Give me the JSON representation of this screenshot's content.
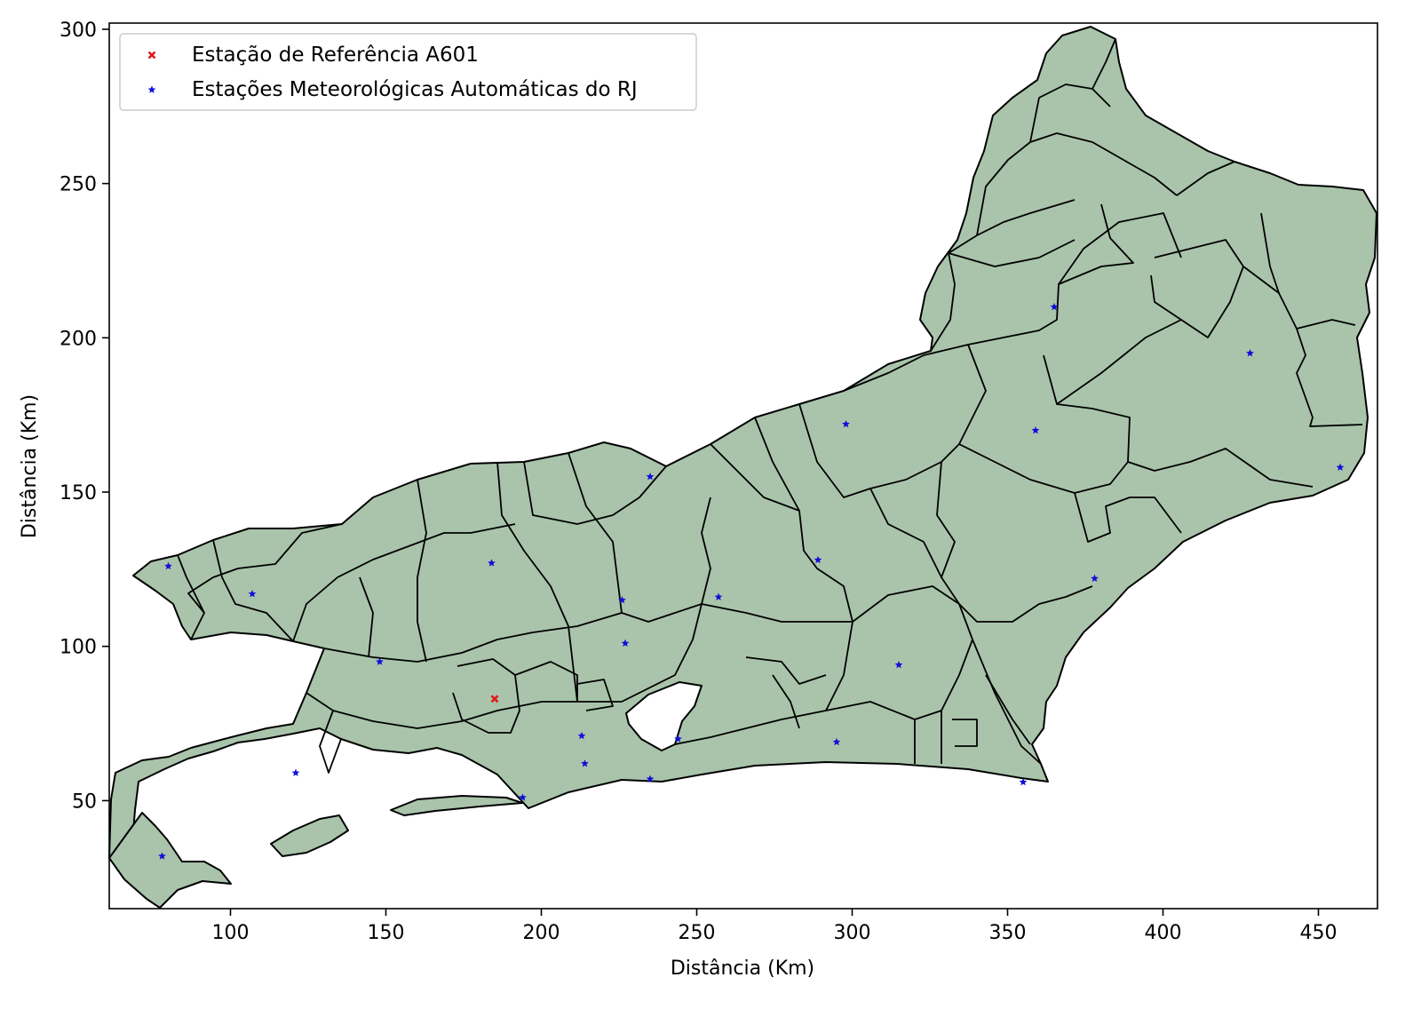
{
  "chart_data": {
    "type": "scatter",
    "xlabel": "Distância (Km)",
    "ylabel": "Distância (Km)",
    "xlim": [
      61,
      469
    ],
    "ylim": [
      15,
      302
    ],
    "xticks": [
      "100",
      "150",
      "200",
      "250",
      "300",
      "350",
      "400",
      "450"
    ],
    "yticks": [
      "50",
      "100",
      "150",
      "200",
      "250",
      "300"
    ],
    "legend_position": "top-left",
    "region_fill": "#a9c4ab",
    "series": [
      {
        "name": "Estação de Referência A601",
        "color": "#e01b1b",
        "marker": "x",
        "points": [
          [
            185,
            83
          ]
        ]
      },
      {
        "name": "Estações Meteorológicas Automáticas do RJ",
        "color": "#1010d8",
        "marker": "star",
        "points": [
          [
            80,
            126
          ],
          [
            107,
            117
          ],
          [
            78,
            32
          ],
          [
            121,
            59
          ],
          [
            148,
            95
          ],
          [
            184,
            127
          ],
          [
            194,
            51
          ],
          [
            213,
            71
          ],
          [
            214,
            62
          ],
          [
            226,
            115
          ],
          [
            227,
            101
          ],
          [
            235,
            155
          ],
          [
            235,
            57
          ],
          [
            244,
            70
          ],
          [
            257,
            116
          ],
          [
            289,
            128
          ],
          [
            295,
            69
          ],
          [
            298,
            172
          ],
          [
            315,
            94
          ],
          [
            355,
            56
          ],
          [
            359,
            170
          ],
          [
            365,
            210
          ],
          [
            378,
            122
          ],
          [
            428,
            195
          ],
          [
            457,
            158
          ]
        ]
      }
    ]
  }
}
